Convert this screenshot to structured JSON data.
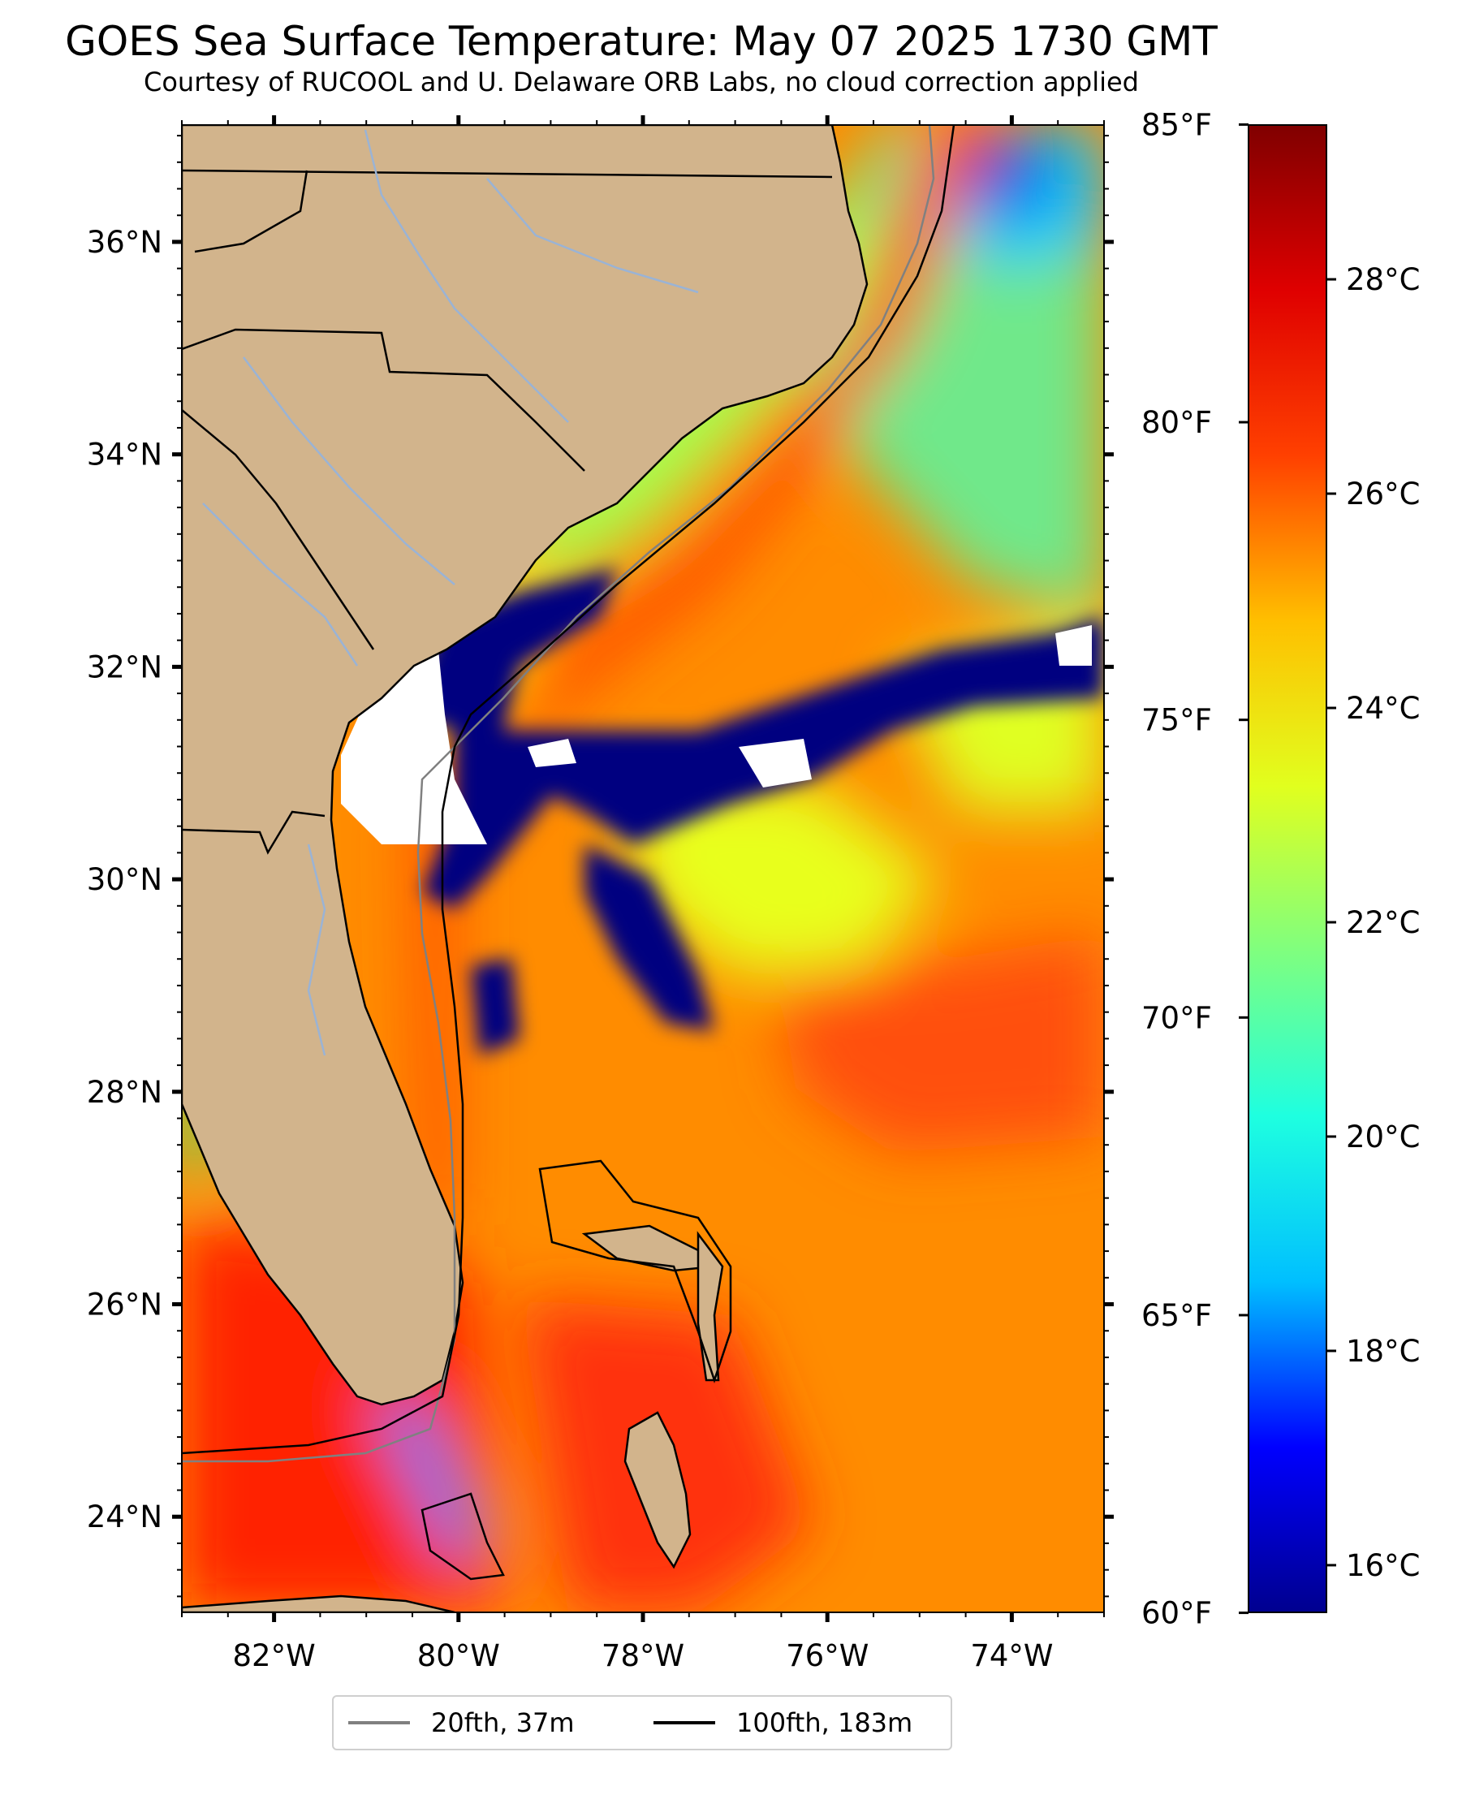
{
  "title": "GOES Sea Surface Temperature: May 07 2025 1730 GMT",
  "subtitle": "Courtesy of RUCOOL and U. Delaware ORB Labs, no cloud correction applied",
  "map": {
    "lon_range": [
      -83,
      -73
    ],
    "lat_range": [
      23.1,
      37.1
    ],
    "lat_ticks": [
      {
        "value": 36,
        "label": "36°N"
      },
      {
        "value": 34,
        "label": "34°N"
      },
      {
        "value": 32,
        "label": "32°N"
      },
      {
        "value": 30,
        "label": "30°N"
      },
      {
        "value": 28,
        "label": "28°N"
      },
      {
        "value": 26,
        "label": "26°N"
      },
      {
        "value": 24,
        "label": "24°N"
      }
    ],
    "lon_ticks": [
      {
        "value": -82,
        "label": "82°W"
      },
      {
        "value": -80,
        "label": "80°W"
      },
      {
        "value": -78,
        "label": "78°W"
      },
      {
        "value": -76,
        "label": "76°W"
      },
      {
        "value": -74,
        "label": "74°W"
      }
    ],
    "colors": {
      "land": "#d2b48c",
      "ocean_base": "#ff8c00",
      "cloud_mask": "#000080",
      "no_data": "#ffffff",
      "river": "#9ab3d5",
      "boundary": "#000000",
      "isobath_20fth": "#808080",
      "isobath_100fth": "#000000"
    }
  },
  "colorbar": {
    "celsius_range": [
      15.56,
      29.44
    ],
    "fahrenheit_ticks": [
      {
        "value": 85,
        "label": "85°F"
      },
      {
        "value": 80,
        "label": "80°F"
      },
      {
        "value": 75,
        "label": "75°F"
      },
      {
        "value": 70,
        "label": "70°F"
      },
      {
        "value": 65,
        "label": "65°F"
      },
      {
        "value": 60,
        "label": "60°F"
      }
    ],
    "celsius_ticks": [
      {
        "value": 28,
        "label": "28°C"
      },
      {
        "value": 26,
        "label": "26°C"
      },
      {
        "value": 24,
        "label": "24°C"
      },
      {
        "value": 22,
        "label": "22°C"
      },
      {
        "value": 20,
        "label": "20°C"
      },
      {
        "value": 18,
        "label": "18°C"
      },
      {
        "value": 16,
        "label": "16°C"
      }
    ],
    "colormap": [
      "#00008f",
      "#0000ff",
      "#00bfff",
      "#1effe0",
      "#7fff7f",
      "#e1ff1e",
      "#ffbf00",
      "#ff4000",
      "#df0000",
      "#800000"
    ]
  },
  "legend": {
    "items": [
      {
        "label": "20fth, 37m",
        "color": "#808080"
      },
      {
        "label": "100fth, 183m",
        "color": "#000000"
      }
    ]
  }
}
